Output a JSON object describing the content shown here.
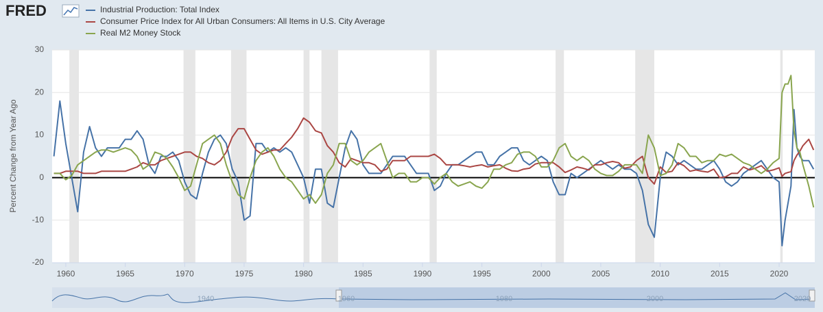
{
  "logo": "FRED",
  "chart_data": {
    "type": "line",
    "y_label": "Percent Change from Year Ago",
    "x": [
      1959,
      1959.5,
      1960,
      1960.5,
      1961,
      1961.5,
      1962,
      1962.5,
      1963,
      1963.5,
      1964,
      1964.5,
      1965,
      1965.5,
      1966,
      1966.5,
      1967,
      1967.5,
      1968,
      1968.5,
      1969,
      1969.5,
      1970,
      1970.5,
      1971,
      1971.5,
      1972,
      1972.5,
      1973,
      1973.5,
      1974,
      1974.5,
      1975,
      1975.5,
      1976,
      1976.5,
      1977,
      1977.5,
      1978,
      1978.5,
      1979,
      1979.5,
      1980,
      1980.5,
      1981,
      1981.5,
      1982,
      1982.5,
      1983,
      1983.5,
      1984,
      1984.5,
      1985,
      1985.5,
      1986,
      1986.5,
      1987,
      1987.5,
      1988,
      1988.5,
      1989,
      1989.5,
      1990,
      1990.5,
      1991,
      1991.5,
      1992,
      1992.5,
      1993,
      1993.5,
      1994,
      1994.5,
      1995,
      1995.5,
      1996,
      1996.5,
      1997,
      1997.5,
      1998,
      1998.5,
      1999,
      1999.5,
      2000,
      2000.5,
      2001,
      2001.5,
      2002,
      2002.5,
      2003,
      2003.5,
      2004,
      2004.5,
      2005,
      2005.5,
      2006,
      2006.5,
      2007,
      2007.5,
      2008,
      2008.5,
      2009,
      2009.5,
      2010,
      2010.5,
      2011,
      2011.5,
      2012,
      2012.5,
      2013,
      2013.5,
      2014,
      2014.5,
      2015,
      2015.5,
      2016,
      2016.5,
      2017,
      2017.5,
      2018,
      2018.5,
      2019,
      2019.5,
      2020,
      2020.25,
      2020.5,
      2020.75,
      2021,
      2021.25,
      2021.5,
      2021.75,
      2022,
      2022.5,
      2022.9
    ],
    "series": [
      {
        "name": "Industrial Production: Total Index",
        "color": "#4572a7",
        "values": [
          5,
          18,
          8,
          0,
          -8,
          6,
          12,
          7,
          5,
          7,
          7,
          7,
          9,
          9,
          11,
          9,
          3,
          1,
          5,
          5,
          6,
          4,
          -1,
          -4,
          -5,
          1,
          6,
          9,
          10,
          8,
          2,
          -1,
          -10,
          -9,
          8,
          8,
          6,
          7,
          6,
          7,
          6,
          3,
          0,
          -6,
          2,
          2,
          -6,
          -7,
          0,
          7,
          11,
          9,
          3,
          1,
          1,
          1,
          3,
          5,
          5,
          5,
          3,
          1,
          1,
          1,
          -3,
          -2,
          1,
          3,
          3,
          4,
          5,
          6,
          6,
          3,
          3,
          5,
          6,
          7,
          7,
          4,
          3,
          4,
          5,
          4,
          -1,
          -4,
          -4,
          1,
          0,
          1,
          2,
          3,
          4,
          3,
          2,
          3,
          2,
          2,
          1,
          -3,
          -11,
          -14,
          0,
          6,
          5,
          3,
          4,
          3,
          2,
          2,
          3,
          4,
          2,
          -1,
          -2,
          -1,
          1,
          2,
          3,
          4,
          2,
          0,
          -1,
          -16,
          -10,
          -6,
          -2,
          16,
          7,
          5,
          4,
          4,
          2
        ]
      },
      {
        "name": "Consumer Price Index for All Urban Consumers: All Items in U.S. City Average",
        "color": "#aa4643",
        "values": [
          1,
          1,
          1.5,
          1.5,
          1.5,
          1,
          1,
          1,
          1.5,
          1.5,
          1.5,
          1.5,
          1.5,
          2,
          2.5,
          3.5,
          3,
          3,
          4,
          4.5,
          5,
          5.5,
          6,
          6,
          5,
          4.5,
          3.5,
          3,
          4,
          6,
          9.5,
          11.5,
          11.5,
          9,
          6.5,
          5.5,
          6,
          6.5,
          6.5,
          8,
          9.5,
          11.5,
          14,
          13,
          11,
          10.5,
          7.5,
          6,
          3.5,
          2.5,
          4.5,
          4,
          3.5,
          3.5,
          3,
          1.5,
          2,
          4,
          4,
          4,
          5,
          5,
          5,
          5,
          5.5,
          4.5,
          3,
          3,
          3,
          2.8,
          2.5,
          2.8,
          3,
          2.5,
          2.8,
          3,
          2.2,
          1.6,
          1.5,
          2,
          2.2,
          3.2,
          3.5,
          3.5,
          3.5,
          2.5,
          1.2,
          1.8,
          2.5,
          2.2,
          1.8,
          3,
          3,
          3.5,
          3.8,
          3.5,
          2.2,
          2.5,
          4,
          5,
          0,
          -1.5,
          2.5,
          1.2,
          1.5,
          3.5,
          2.8,
          1.5,
          1.8,
          1.5,
          1.3,
          2,
          0,
          0.2,
          1,
          1,
          2.5,
          1.8,
          2.2,
          2.8,
          1.5,
          1.8,
          2.3,
          0.3,
          1,
          1.2,
          1.4,
          4,
          5.3,
          6.2,
          7.5,
          9,
          6.5
        ]
      },
      {
        "name": "Real M2 Money Stock",
        "color": "#89a54e",
        "values": [
          1,
          1,
          -0.5,
          0.5,
          3,
          4,
          5,
          6,
          6.5,
          6.5,
          6,
          6.5,
          7,
          6.5,
          5,
          2,
          3,
          6,
          5.5,
          4.5,
          2.5,
          0,
          -3,
          -2,
          3,
          8,
          9,
          10,
          8,
          3,
          -1,
          -4,
          -5,
          0,
          4,
          6,
          7,
          5,
          2,
          0,
          -1,
          -3,
          -5,
          -4,
          -6,
          -4,
          1,
          3,
          8,
          8,
          4,
          3,
          4,
          6,
          7,
          8,
          4,
          0,
          1,
          1,
          -1,
          -1,
          0,
          0,
          -1.5,
          0,
          1,
          -1,
          -2,
          -1.5,
          -1,
          -2,
          -2.5,
          -1,
          2,
          2,
          3,
          3.5,
          5.5,
          6,
          6,
          5,
          2.5,
          2.5,
          4,
          7,
          8,
          5,
          4,
          5,
          4,
          2,
          1,
          0.5,
          0.5,
          1.5,
          3,
          3,
          3,
          1,
          10,
          7,
          0.5,
          1,
          3,
          8,
          7,
          5,
          5,
          3.5,
          4,
          4,
          5.5,
          5,
          5.5,
          4.5,
          3.5,
          3,
          2,
          1,
          2,
          3.5,
          4.5,
          20,
          22,
          22,
          24,
          11,
          7,
          6,
          3,
          -2,
          -7
        ]
      }
    ],
    "recessions": [
      [
        1960.3,
        1961.1
      ],
      [
        1969.9,
        1970.9
      ],
      [
        1973.9,
        1975.2
      ],
      [
        1980.0,
        1980.5
      ],
      [
        1981.5,
        1982.9
      ],
      [
        1990.6,
        1991.2
      ],
      [
        2001.2,
        2001.9
      ],
      [
        2007.9,
        2009.5
      ],
      [
        2020.1,
        2020.3
      ]
    ],
    "xlim": [
      1958.85,
      2023.0
    ],
    "xticks": [
      1960,
      1965,
      1970,
      1975,
      1980,
      1985,
      1990,
      1995,
      2000,
      2005,
      2010,
      2015,
      2020
    ],
    "ylim": [
      -20,
      30
    ],
    "yticks": [
      -20,
      -10,
      0,
      10,
      20,
      30
    ],
    "grid": true,
    "navigator": {
      "labels": [
        "1940",
        "1960",
        "1980",
        "2000",
        "2020"
      ]
    }
  }
}
